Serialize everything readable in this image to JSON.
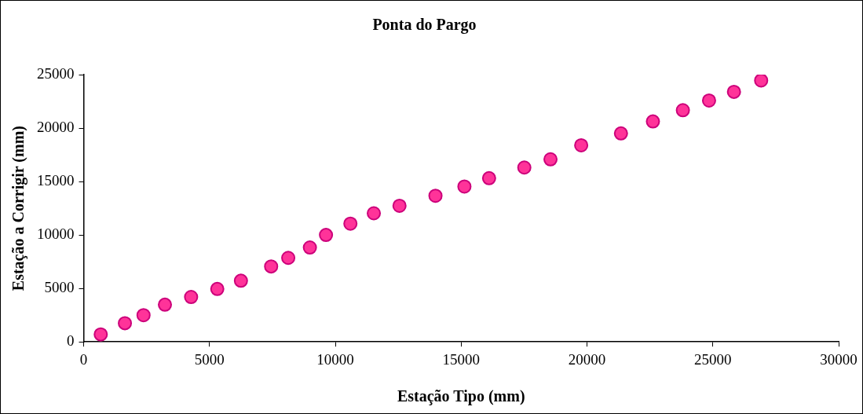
{
  "chart_data": {
    "type": "scatter",
    "title": "Ponta do Pargo",
    "xlabel": "Estação Tipo (mm)",
    "ylabel": "Estação a Corrigir (mm)",
    "x": [
      680,
      1640,
      2380,
      3230,
      4270,
      5310,
      6250,
      7450,
      8130,
      8990,
      9630,
      10600,
      11530,
      12550,
      13980,
      15130,
      16110,
      17510,
      18550,
      19770,
      21350,
      22620,
      23810,
      24850,
      25840,
      26920
    ],
    "series": [
      {
        "color": "#ff3399",
        "values": [
          700,
          1750,
          2500,
          3480,
          4200,
          4950,
          5720,
          7060,
          7860,
          8830,
          10000,
          11060,
          12030,
          12730,
          13670,
          14530,
          15310,
          16310,
          17080,
          18390,
          19500,
          20620,
          21670,
          22580,
          23390,
          24450
        ]
      }
    ],
    "xlim": [
      0,
      30000
    ],
    "xticks": [
      0,
      5000,
      10000,
      15000,
      20000,
      25000,
      30000
    ],
    "ylim": [
      0,
      25000
    ],
    "yticks": [
      0,
      5000,
      10000,
      15000,
      20000,
      25000
    ],
    "grid": false,
    "legend": false,
    "marker": "circle"
  }
}
